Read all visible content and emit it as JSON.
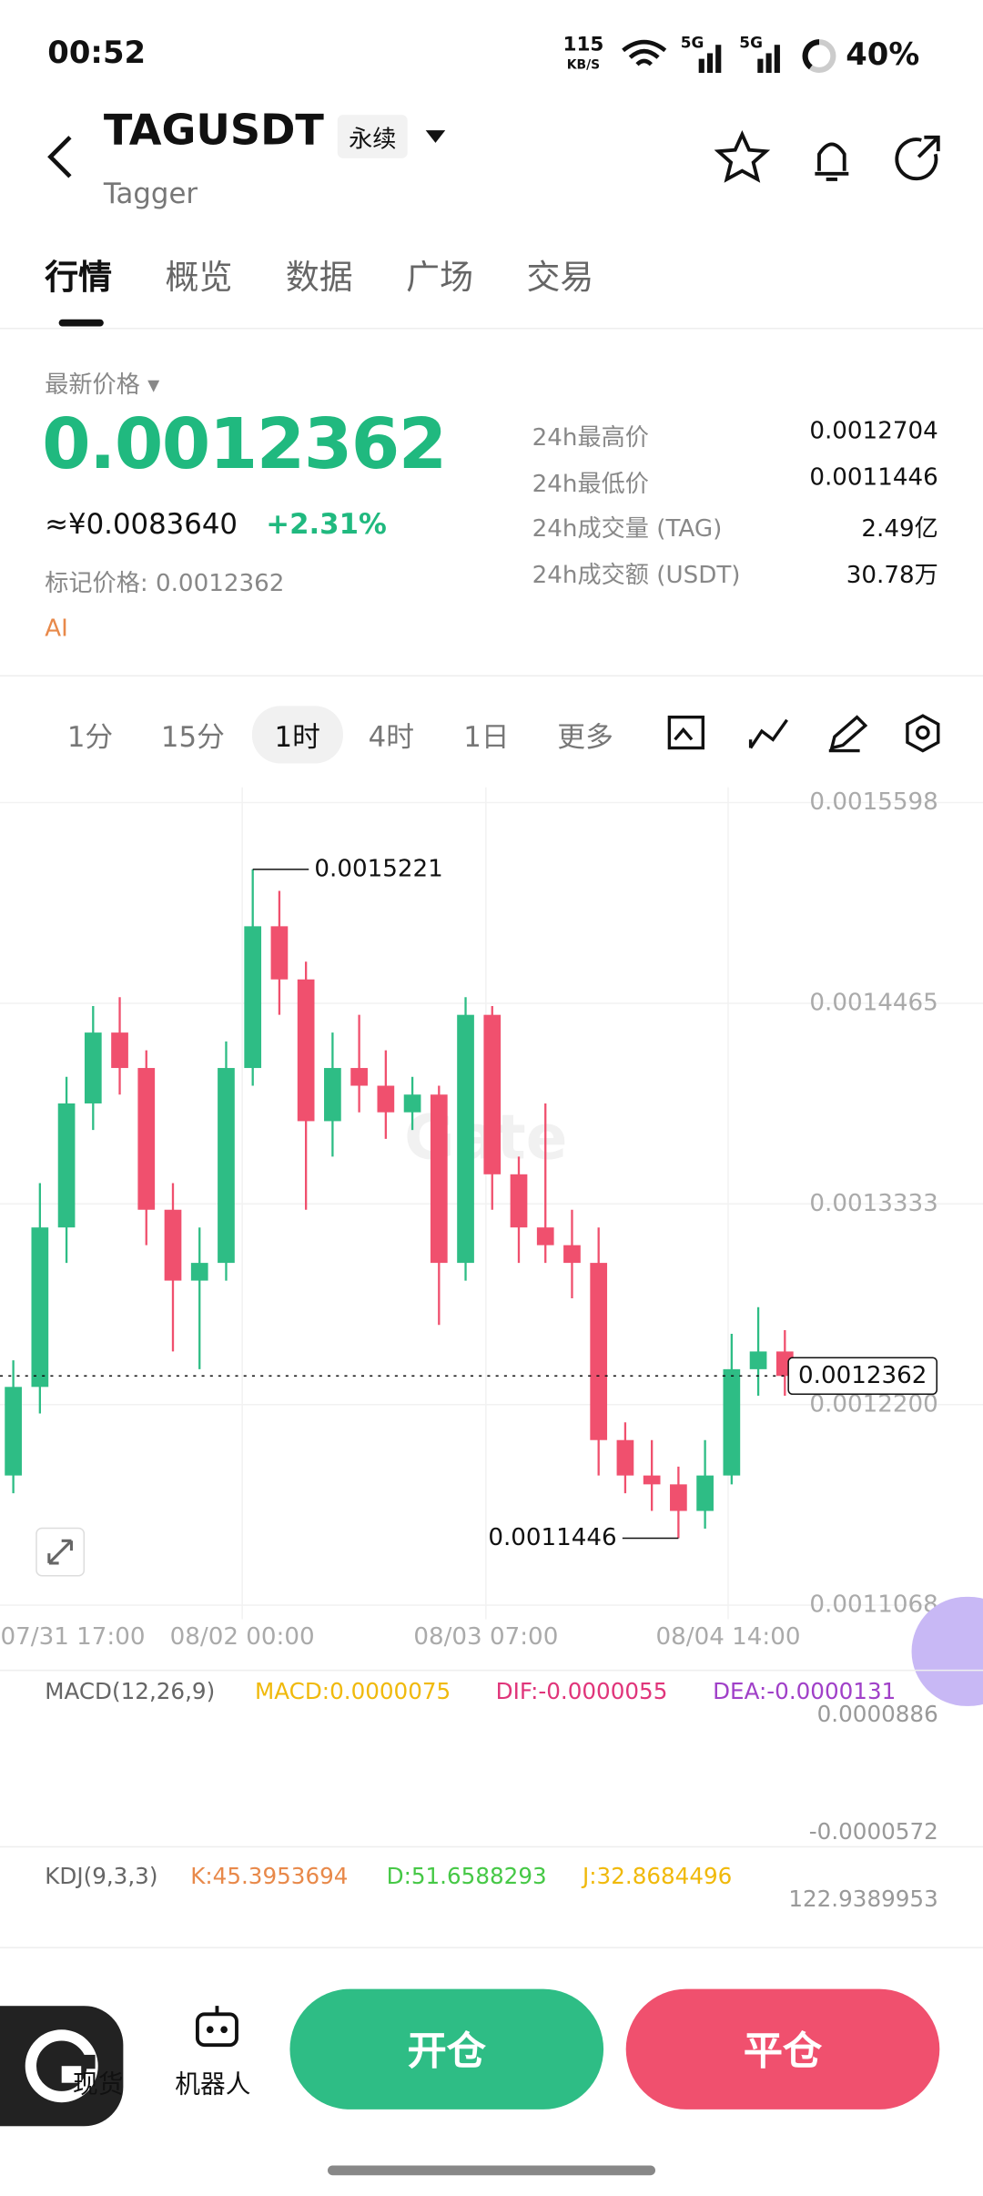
{
  "status": {
    "time": "00:52",
    "speed": "115",
    "speed_unit": "KB/S",
    "network": "5G",
    "battery": "40%"
  },
  "header": {
    "symbol": "TAGUSDT",
    "contract": "永续",
    "name": "Tagger"
  },
  "tabs": [
    "行情",
    "概览",
    "数据",
    "广场",
    "交易"
  ],
  "price": {
    "label": "最新价格",
    "last": "0.0012362",
    "cny": "≈¥0.0083640",
    "change": "+2.31%",
    "mark": "标记价格: 0.0012362",
    "ai": "AI"
  },
  "stats": [
    [
      "24h最高价",
      "0.0012704"
    ],
    [
      "24h最低价",
      "0.0011446"
    ],
    [
      "24h成交量 (TAG)",
      "2.49亿"
    ],
    [
      "24h成交额 (USDT)",
      "30.78万"
    ]
  ],
  "intervals": [
    "1分",
    "15分",
    "1时",
    "4时",
    "1日",
    "更多"
  ],
  "chart_data": {
    "type": "candlestick",
    "watermark": "Gate",
    "xtick_labels": [
      "07/31 17:00",
      "08/02 00:00",
      "08/03 07:00",
      "08/04 14:00"
    ],
    "ylim": [
      0.0011068,
      0.0015598
    ],
    "yticks": [
      0.0015598,
      0.0014465,
      0.0013333,
      {
        "value": 0.00122,
        "label": "0.0012200"
      },
      0.0011068
    ],
    "up_color": "#2ebd85",
    "down_color": "#f0506e",
    "open": [
      0.00118,
      0.00123,
      0.00132,
      0.00139,
      0.00143,
      0.00141,
      0.00133,
      0.00129,
      0.0013,
      0.00141,
      0.00149,
      0.00146,
      0.00138,
      0.00141,
      0.0014,
      0.001385,
      0.001395,
      0.0013,
      0.00144,
      0.00135,
      0.00132,
      0.00131,
      0.0013,
      0.0012,
      0.00118,
      0.001175,
      0.00116,
      0.00118,
      0.00124,
      0.00125
    ],
    "high": [
      0.001245,
      0.001345,
      0.001405,
      0.001445,
      0.00145,
      0.00142,
      0.001345,
      0.00132,
      0.001425,
      0.0015221,
      0.00151,
      0.00147,
      0.00143,
      0.00144,
      0.00142,
      0.001405,
      0.0014,
      0.00145,
      0.001445,
      0.00136,
      0.00139,
      0.00133,
      0.00132,
      0.00121,
      0.0012,
      0.001185,
      0.0012,
      0.00126,
      0.001275,
      0.001262
    ],
    "low": [
      0.00117,
      0.001215,
      0.0013,
      0.001375,
      0.001395,
      0.00131,
      0.00125,
      0.00124,
      0.00129,
      0.0014,
      0.00144,
      0.00133,
      0.00136,
      0.001385,
      0.00137,
      0.001375,
      0.001265,
      0.00129,
      0.00133,
      0.0013,
      0.0013,
      0.00128,
      0.00118,
      0.00117,
      0.00116,
      0.0011446,
      0.00115,
      0.001175,
      0.001225,
      0.001225
    ],
    "close": [
      0.00123,
      0.00132,
      0.00139,
      0.00143,
      0.00141,
      0.00133,
      0.00129,
      0.0013,
      0.00141,
      0.00149,
      0.00146,
      0.00138,
      0.00141,
      0.0014,
      0.001385,
      0.001395,
      0.0013,
      0.00144,
      0.00135,
      0.00132,
      0.00131,
      0.0013,
      0.0012,
      0.00118,
      0.001175,
      0.00116,
      0.00118,
      0.00124,
      0.00125,
      0.0012362
    ],
    "high_label": "0.0015221",
    "low_label": "0.0011446",
    "last_label": "0.0012362"
  },
  "macd": {
    "title": "MACD(12,26,9)",
    "macd": "MACD:0.0000075",
    "dif": "DIF:-0.0000055",
    "dea": "DEA:-0.0000131",
    "max": "0.0000886",
    "min": "-0.0000572"
  },
  "kdj": {
    "title": "KDJ(9,3,3)",
    "k": "K:45.3953694",
    "d": "D:51.6588293",
    "j": "J:32.8684496",
    "max": "122.9389953"
  },
  "bottom": {
    "spot": "现货",
    "robot": "机器人",
    "open": "开仓",
    "close": "平仓"
  }
}
